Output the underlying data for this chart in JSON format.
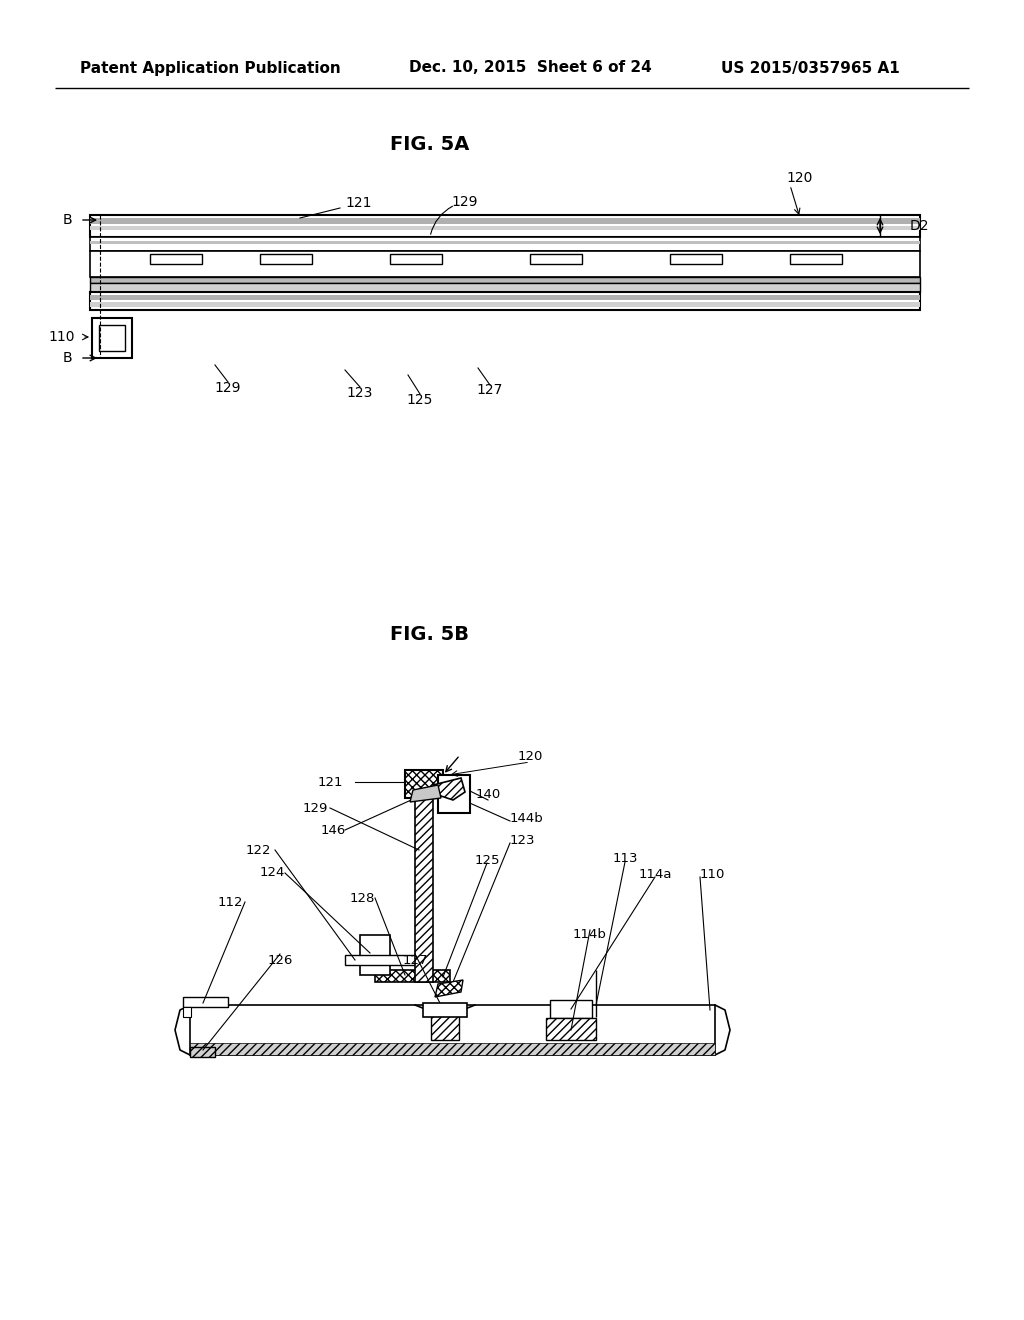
{
  "title_header": "Patent Application Publication",
  "date_header": "Dec. 10, 2015  Sheet 6 of 24",
  "patent_header": "US 2015/0357965 A1",
  "fig5a_title": "FIG. 5A",
  "fig5b_title": "FIG. 5B",
  "background_color": "#ffffff",
  "line_color": "#000000"
}
